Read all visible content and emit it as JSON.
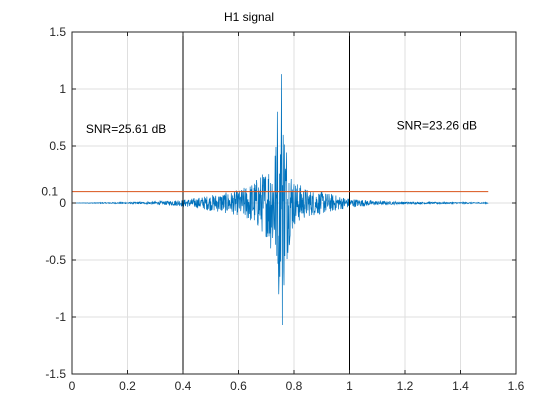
{
  "colors": {
    "signal": "#0072BD",
    "threshold_line": "#D95319",
    "marker_lines": "#000000",
    "grid": "#DFDFDF",
    "axes": "#262626"
  },
  "chart_data": {
    "type": "line",
    "title": "H1 signal",
    "xlabel": "",
    "ylabel": "",
    "xlim": [
      0,
      1.6
    ],
    "ylim": [
      -1.5,
      1.5
    ],
    "x_ticks": [
      0,
      0.2,
      0.4,
      0.6,
      0.8,
      1,
      1.2,
      1.4,
      1.6
    ],
    "x_tick_labels": [
      "0",
      "0.2",
      "0.4",
      "0.6",
      "0.8",
      "1",
      "1.2",
      "1.4",
      "1.6"
    ],
    "y_ticks": [
      -1.5,
      -1,
      -0.5,
      0,
      0.5,
      1,
      1.5
    ],
    "y_tick_labels": [
      "-1.5",
      "-1",
      "-0.5",
      "0",
      "0.5",
      "1",
      "1.5"
    ],
    "grid": true,
    "box": true,
    "signal": {
      "x_range": [
        0,
        1.5
      ],
      "envelope": [
        [
          0.0,
          0.0
        ],
        [
          0.1,
          0.004
        ],
        [
          0.2,
          0.006
        ],
        [
          0.3,
          0.012
        ],
        [
          0.35,
          0.02
        ],
        [
          0.4,
          0.03
        ],
        [
          0.45,
          0.045
        ],
        [
          0.5,
          0.07
        ],
        [
          0.55,
          0.09
        ],
        [
          0.6,
          0.11
        ],
        [
          0.65,
          0.18
        ],
        [
          0.7,
          0.3
        ],
        [
          0.72,
          0.45
        ],
        [
          0.74,
          0.6
        ],
        [
          0.76,
          0.9
        ],
        [
          0.78,
          0.4
        ],
        [
          0.8,
          0.2
        ],
        [
          0.85,
          0.12
        ],
        [
          0.9,
          0.1
        ],
        [
          0.95,
          0.07
        ],
        [
          1.0,
          0.04
        ],
        [
          1.1,
          0.018
        ],
        [
          1.2,
          0.01
        ],
        [
          1.3,
          0.008
        ],
        [
          1.4,
          0.006
        ],
        [
          1.5,
          0.005
        ]
      ],
      "peaks": [
        [
          0.755,
          1.13
        ],
        [
          0.758,
          -1.07
        ],
        [
          0.74,
          0.8
        ],
        [
          0.745,
          -0.8
        ]
      ]
    },
    "threshold": {
      "y": 0.1,
      "x_range": [
        0,
        1.5
      ],
      "label": "0.1"
    },
    "vertical_lines": [
      0.4,
      1.0
    ],
    "annotations": [
      {
        "text": "SNR=25.61 dB",
        "x": 0.05,
        "y": 0.65
      },
      {
        "text": "SNR=23.26 dB",
        "x": 1.17,
        "y": 0.68
      }
    ]
  }
}
